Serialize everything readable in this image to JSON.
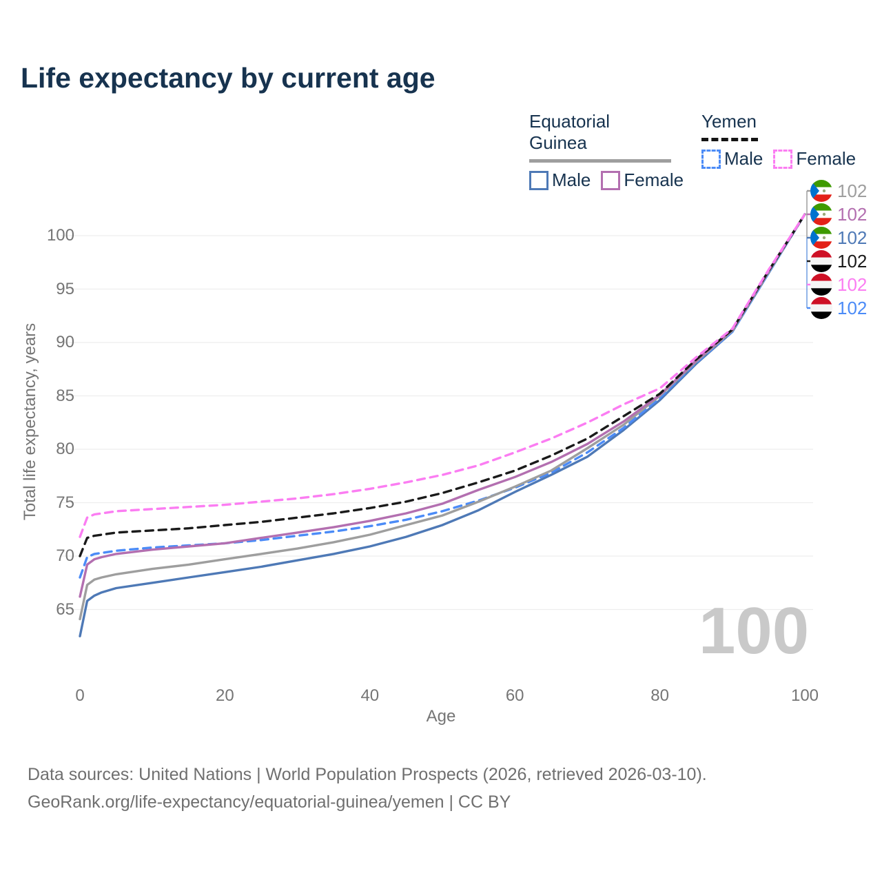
{
  "title": "Life expectancy by current age",
  "colors": {
    "background": "#ffffff",
    "title_text": "#17334f",
    "axis_text": "#757575",
    "grid": "#ededed",
    "watermark": "#c9c9c9",
    "eg_male": "#4e79b6",
    "eg_female": "#b36fb0",
    "eg_total": "#9e9e9e",
    "yemen_male": "#4b8bf7",
    "yemen_female": "#fb7df2",
    "yemen_total": "#1a1a1a"
  },
  "legend": {
    "groups": [
      {
        "label": "Equatorial Guinea",
        "rule_style": "solid",
        "rule_color": "#9e9e9e",
        "items": [
          {
            "label": "Male",
            "color": "#4e79b6",
            "style": "solid"
          },
          {
            "label": "Female",
            "color": "#b36fb0",
            "style": "solid"
          }
        ]
      },
      {
        "label": "Yemen",
        "rule_style": "dashed",
        "rule_color": "#141414",
        "items": [
          {
            "label": "Male",
            "color": "#4b8bf7",
            "style": "dashed"
          },
          {
            "label": "Female",
            "color": "#fb7df2",
            "style": "dashed"
          }
        ]
      }
    ]
  },
  "chart_data": {
    "type": "line",
    "title": "Life expectancy by current age",
    "xlabel": "Age",
    "ylabel": "Total life expectancy, years",
    "xlim": [
      0,
      100
    ],
    "ylim": [
      61.5,
      103
    ],
    "x_ticks": [
      0,
      20,
      40,
      60,
      80,
      100
    ],
    "y_ticks": [
      65,
      70,
      75,
      80,
      85,
      90,
      95,
      100
    ],
    "grid": "horizontal",
    "legend_position": "top-right",
    "x": [
      0,
      1,
      2,
      3,
      5,
      10,
      15,
      20,
      25,
      30,
      35,
      40,
      45,
      50,
      55,
      60,
      65,
      70,
      75,
      80,
      85,
      90,
      95,
      100
    ],
    "series": [
      {
        "name": "Equatorial Guinea Male",
        "country": "Equatorial Guinea",
        "sex": "Male",
        "color": "#4e79b6",
        "dash": false,
        "values": [
          62.5,
          65.8,
          66.3,
          66.6,
          67.0,
          67.5,
          68.0,
          68.5,
          69.0,
          69.6,
          70.2,
          70.9,
          71.8,
          72.9,
          74.3,
          76.0,
          77.6,
          79.3,
          81.8,
          84.6,
          88.0,
          91.0,
          96.5,
          102
        ]
      },
      {
        "name": "Yemen Male",
        "country": "Yemen",
        "sex": "Male",
        "color": "#4b8bf7",
        "dash": true,
        "values": [
          68.0,
          69.9,
          70.2,
          70.3,
          70.5,
          70.8,
          71.0,
          71.2,
          71.5,
          71.9,
          72.3,
          72.8,
          73.4,
          74.2,
          75.2,
          76.4,
          77.8,
          79.7,
          82.0,
          84.8,
          88.1,
          91.0,
          96.5,
          102
        ]
      },
      {
        "name": "Equatorial Guinea Total",
        "country": "Equatorial Guinea",
        "sex": "Both",
        "color": "#9e9e9e",
        "dash": false,
        "values": [
          64.1,
          67.3,
          67.8,
          68.0,
          68.3,
          68.8,
          69.2,
          69.7,
          70.2,
          70.7,
          71.3,
          72.0,
          72.9,
          73.8,
          75.1,
          76.5,
          78.0,
          80.1,
          82.3,
          85.0,
          88.2,
          91.1,
          96.6,
          102
        ]
      },
      {
        "name": "Equatorial Guinea Female",
        "country": "Equatorial Guinea",
        "sex": "Female",
        "color": "#b36fb0",
        "dash": false,
        "values": [
          66.2,
          69.2,
          69.7,
          69.9,
          70.2,
          70.6,
          70.9,
          71.2,
          71.7,
          72.2,
          72.7,
          73.3,
          74.0,
          74.9,
          76.2,
          77.4,
          78.8,
          80.5,
          82.6,
          85.1,
          88.3,
          91.2,
          96.7,
          102
        ]
      },
      {
        "name": "Yemen Total",
        "country": "Yemen",
        "sex": "Both",
        "color": "#1a1a1a",
        "dash": true,
        "values": [
          70.0,
          71.7,
          71.9,
          72.0,
          72.2,
          72.4,
          72.6,
          72.9,
          73.2,
          73.6,
          74.0,
          74.5,
          75.1,
          75.9,
          76.9,
          78.0,
          79.4,
          81.0,
          83.1,
          85.2,
          88.4,
          91.2,
          96.7,
          102
        ]
      },
      {
        "name": "Yemen Female",
        "country": "Yemen",
        "sex": "Female",
        "color": "#fb7df2",
        "dash": true,
        "values": [
          71.8,
          73.6,
          73.9,
          74.0,
          74.2,
          74.4,
          74.6,
          74.8,
          75.1,
          75.4,
          75.8,
          76.3,
          76.9,
          77.6,
          78.5,
          79.7,
          81.0,
          82.5,
          84.2,
          85.7,
          88.6,
          91.3,
          96.8,
          102
        ]
      }
    ],
    "end_labels": [
      {
        "value": "102",
        "color": "#9e9e9e",
        "flag": "equatorial-guinea"
      },
      {
        "value": "102",
        "color": "#b36fb0",
        "flag": "equatorial-guinea"
      },
      {
        "value": "102",
        "color": "#4e79b6",
        "flag": "equatorial-guinea"
      },
      {
        "value": "102",
        "color": "#1a1a1a",
        "flag": "yemen"
      },
      {
        "value": "102",
        "color": "#fb7df2",
        "flag": "yemen"
      },
      {
        "value": "102",
        "color": "#4b8bf7",
        "flag": "yemen"
      }
    ]
  },
  "watermark": "100",
  "footer": {
    "line1": "Data sources: United Nations | World Population Prospects (2026, retrieved 2026-03-10).",
    "line2": "GeoRank.org/life-expectancy/equatorial-guinea/yemen | CC BY"
  }
}
